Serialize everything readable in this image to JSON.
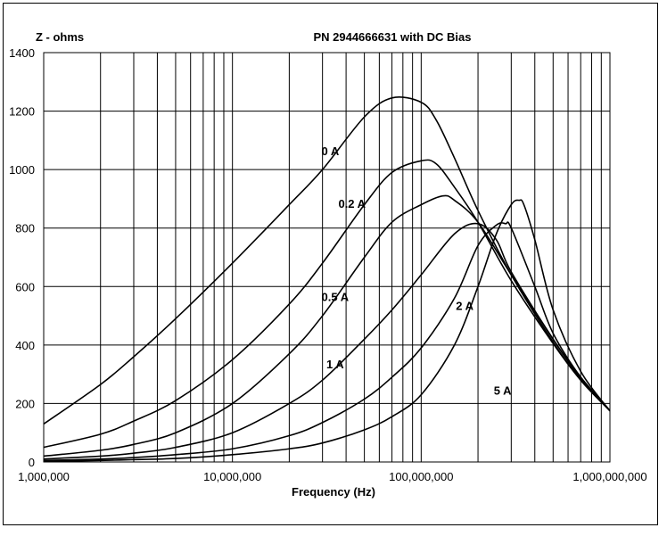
{
  "chart_data": {
    "type": "line",
    "title": "PN 2944666631 with DC Bias",
    "ylabel": "Z - ohms",
    "xlabel": "Frequency (Hz)",
    "x_scale": "log",
    "xlim": [
      1000000,
      1000000000
    ],
    "ylim": [
      0,
      1400
    ],
    "grid": true,
    "x_tick_labels": [
      "1,000,000",
      "10,000,000",
      "100,000,000",
      "1,000,000,000"
    ],
    "y_tick_labels": [
      "0",
      "200",
      "400",
      "600",
      "800",
      "1000",
      "1200",
      "1400"
    ],
    "series": [
      {
        "name": "0 A",
        "points": [
          [
            1000000,
            130
          ],
          [
            2000000,
            265
          ],
          [
            3000000,
            360
          ],
          [
            5000000,
            490
          ],
          [
            10000000,
            680
          ],
          [
            20000000,
            880
          ],
          [
            30000000,
            1000
          ],
          [
            50000000,
            1180
          ],
          [
            70000000,
            1245
          ],
          [
            100000000,
            1230
          ],
          [
            120000000,
            1170
          ],
          [
            150000000,
            1040
          ],
          [
            200000000,
            860
          ],
          [
            300000000,
            640
          ],
          [
            500000000,
            410
          ],
          [
            700000000,
            280
          ],
          [
            1000000000,
            175
          ]
        ]
      },
      {
        "name": "0.2 A",
        "points": [
          [
            1000000,
            50
          ],
          [
            2000000,
            95
          ],
          [
            3000000,
            140
          ],
          [
            5000000,
            210
          ],
          [
            10000000,
            350
          ],
          [
            20000000,
            540
          ],
          [
            30000000,
            680
          ],
          [
            50000000,
            880
          ],
          [
            70000000,
            990
          ],
          [
            100000000,
            1030
          ],
          [
            120000000,
            1020
          ],
          [
            150000000,
            940
          ],
          [
            200000000,
            820
          ],
          [
            300000000,
            620
          ],
          [
            500000000,
            405
          ],
          [
            700000000,
            280
          ],
          [
            1000000000,
            175
          ]
        ]
      },
      {
        "name": "0.5 A",
        "points": [
          [
            1000000,
            20
          ],
          [
            2000000,
            40
          ],
          [
            3000000,
            60
          ],
          [
            5000000,
            100
          ],
          [
            10000000,
            200
          ],
          [
            20000000,
            370
          ],
          [
            30000000,
            500
          ],
          [
            50000000,
            700
          ],
          [
            70000000,
            820
          ],
          [
            100000000,
            880
          ],
          [
            130000000,
            910
          ],
          [
            150000000,
            895
          ],
          [
            200000000,
            820
          ],
          [
            300000000,
            640
          ],
          [
            500000000,
            420
          ],
          [
            700000000,
            285
          ],
          [
            1000000000,
            175
          ]
        ]
      },
      {
        "name": "1 A",
        "points": [
          [
            1000000,
            10
          ],
          [
            2000000,
            20
          ],
          [
            3000000,
            30
          ],
          [
            5000000,
            50
          ],
          [
            10000000,
            100
          ],
          [
            20000000,
            200
          ],
          [
            30000000,
            280
          ],
          [
            50000000,
            420
          ],
          [
            70000000,
            520
          ],
          [
            100000000,
            640
          ],
          [
            150000000,
            780
          ],
          [
            200000000,
            815
          ],
          [
            250000000,
            760
          ],
          [
            300000000,
            650
          ],
          [
            500000000,
            420
          ],
          [
            700000000,
            290
          ],
          [
            1000000000,
            175
          ]
        ]
      },
      {
        "name": "2 A",
        "points": [
          [
            1000000,
            5
          ],
          [
            2000000,
            10
          ],
          [
            3000000,
            15
          ],
          [
            5000000,
            25
          ],
          [
            10000000,
            45
          ],
          [
            20000000,
            90
          ],
          [
            30000000,
            135
          ],
          [
            50000000,
            215
          ],
          [
            70000000,
            290
          ],
          [
            100000000,
            390
          ],
          [
            150000000,
            560
          ],
          [
            200000000,
            740
          ],
          [
            250000000,
            810
          ],
          [
            280000000,
            815
          ],
          [
            300000000,
            800
          ],
          [
            400000000,
            600
          ],
          [
            500000000,
            440
          ],
          [
            700000000,
            290
          ],
          [
            1000000000,
            175
          ]
        ]
      },
      {
        "name": "5 A",
        "points": [
          [
            1000000,
            2
          ],
          [
            2000000,
            5
          ],
          [
            3000000,
            8
          ],
          [
            5000000,
            12
          ],
          [
            10000000,
            25
          ],
          [
            20000000,
            45
          ],
          [
            30000000,
            65
          ],
          [
            50000000,
            110
          ],
          [
            70000000,
            155
          ],
          [
            100000000,
            230
          ],
          [
            150000000,
            400
          ],
          [
            200000000,
            600
          ],
          [
            250000000,
            780
          ],
          [
            300000000,
            880
          ],
          [
            330000000,
            895
          ],
          [
            350000000,
            880
          ],
          [
            400000000,
            760
          ],
          [
            500000000,
            520
          ],
          [
            700000000,
            310
          ],
          [
            1000000000,
            175
          ]
        ]
      }
    ],
    "annotations": [
      {
        "text": "0 A",
        "x": 33000000,
        "y": 1050
      },
      {
        "text": "0.2 A",
        "x": 43000000,
        "y": 870
      },
      {
        "text": "0.5 A",
        "x": 35000000,
        "y": 550
      },
      {
        "text": "1 A",
        "x": 35000000,
        "y": 320
      },
      {
        "text": "2 A",
        "x": 170000000,
        "y": 520
      },
      {
        "text": "5 A",
        "x": 270000000,
        "y": 230
      }
    ]
  }
}
